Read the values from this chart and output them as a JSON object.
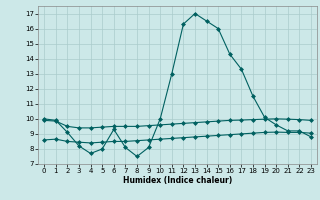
{
  "line1_x": [
    0,
    1,
    2,
    3,
    4,
    5,
    6,
    7,
    8,
    9,
    10,
    11,
    12,
    13,
    14,
    15,
    16,
    17,
    18,
    19,
    20,
    21,
    22,
    23
  ],
  "line1_y": [
    10.0,
    9.9,
    9.1,
    8.2,
    7.7,
    8.0,
    9.3,
    8.1,
    7.5,
    8.1,
    10.0,
    13.0,
    16.3,
    17.0,
    16.5,
    16.0,
    14.3,
    13.3,
    11.5,
    10.1,
    9.6,
    9.2,
    9.2,
    8.8
  ],
  "line2_x": [
    0,
    1,
    2,
    3,
    4,
    5,
    6,
    7,
    8,
    9,
    10,
    11,
    12,
    13,
    14,
    15,
    16,
    17,
    18,
    19,
    20,
    21,
    22,
    23
  ],
  "line2_y": [
    9.9,
    9.85,
    9.5,
    9.4,
    9.4,
    9.45,
    9.5,
    9.5,
    9.5,
    9.55,
    9.6,
    9.65,
    9.7,
    9.75,
    9.8,
    9.85,
    9.9,
    9.92,
    9.95,
    9.98,
    10.0,
    9.98,
    9.95,
    9.9
  ],
  "line3_x": [
    0,
    1,
    2,
    3,
    4,
    5,
    6,
    7,
    8,
    9,
    10,
    11,
    12,
    13,
    14,
    15,
    16,
    17,
    18,
    19,
    20,
    21,
    22,
    23
  ],
  "line3_y": [
    8.6,
    8.65,
    8.5,
    8.45,
    8.4,
    8.45,
    8.5,
    8.5,
    8.55,
    8.6,
    8.65,
    8.7,
    8.75,
    8.8,
    8.85,
    8.9,
    8.95,
    9.0,
    9.05,
    9.1,
    9.12,
    9.1,
    9.1,
    9.05
  ],
  "color": "#006060",
  "bg_color": "#cce8e8",
  "grid_color": "#aacccc",
  "xlabel": "Humidex (Indice chaleur)",
  "xlim": [
    -0.5,
    23.5
  ],
  "ylim": [
    7,
    17.5
  ],
  "yticks": [
    7,
    8,
    9,
    10,
    11,
    12,
    13,
    14,
    15,
    16,
    17
  ],
  "xticks": [
    0,
    1,
    2,
    3,
    4,
    5,
    6,
    7,
    8,
    9,
    10,
    11,
    12,
    13,
    14,
    15,
    16,
    17,
    18,
    19,
    20,
    21,
    22,
    23
  ],
  "markersize": 2.0,
  "linewidth": 0.8
}
